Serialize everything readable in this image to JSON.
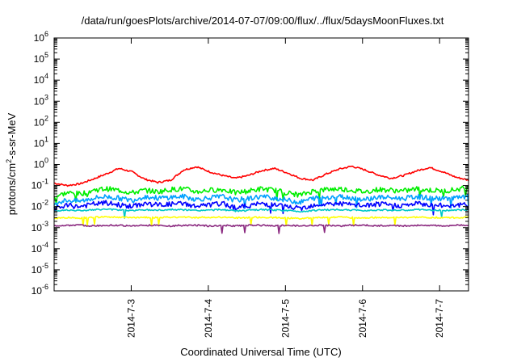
{
  "chart_data": {
    "type": "line",
    "title": "/data/run/goesPlots/archive/2014-07-07/09:00/flux/../flux/5daysMoonFluxes.txt",
    "xlabel": "Coordinated Universal Time (UTC)",
    "ylabel": "protons/cm²-s-sr-MeV",
    "yscale": "log",
    "ylim_exp": [
      -6,
      6
    ],
    "xlim": [
      "2014-07-02 00:00",
      "2014-07-07 09:00"
    ],
    "x_ticks": [
      "2014-7-3",
      "2014-7-4",
      "2014-7-5",
      "2014-7-6",
      "2014-7-7"
    ],
    "grid": false,
    "legend": "none",
    "series": [
      {
        "color": "#ff0000",
        "values": [
          0.13,
          0.1,
          0.12,
          0.2,
          0.35,
          0.65,
          0.45,
          0.2,
          0.14,
          0.18,
          0.55,
          0.78,
          0.45,
          0.3,
          0.22,
          0.3,
          0.5,
          0.65,
          0.4,
          0.22,
          0.18,
          0.35,
          0.6,
          0.82,
          0.55,
          0.32,
          0.22,
          0.3,
          0.5,
          0.72,
          0.45,
          0.25,
          0.18
        ]
      },
      {
        "color": "#00ee00",
        "values": [
          0.03,
          0.045,
          0.04,
          0.06,
          0.07,
          0.06,
          0.045,
          0.06,
          0.05,
          0.065,
          0.07,
          0.05,
          0.06,
          0.065,
          0.045,
          0.055,
          0.07,
          0.06,
          0.045,
          0.035,
          0.055,
          0.065,
          0.07,
          0.06,
          0.05,
          0.065,
          0.06,
          0.055,
          0.07,
          0.06,
          0.055,
          0.065,
          0.08
        ]
      },
      {
        "color": "#00a0ff",
        "values": [
          0.015,
          0.02,
          0.018,
          0.025,
          0.03,
          0.025,
          0.02,
          0.03,
          0.025,
          0.028,
          0.03,
          0.022,
          0.026,
          0.03,
          0.02,
          0.024,
          0.03,
          0.026,
          0.02,
          0.016,
          0.025,
          0.028,
          0.03,
          0.026,
          0.022,
          0.028,
          0.026,
          0.024,
          0.03,
          0.025,
          0.024,
          0.026,
          0.028
        ]
      },
      {
        "color": "#0000ff",
        "values": [
          0.008,
          0.011,
          0.01,
          0.013,
          0.015,
          0.012,
          0.01,
          0.014,
          0.012,
          0.013,
          0.014,
          0.01,
          0.012,
          0.014,
          0.009,
          0.011,
          0.014,
          0.012,
          0.01,
          0.008,
          0.012,
          0.013,
          0.014,
          0.012,
          0.011,
          0.013,
          0.012,
          0.011,
          0.014,
          0.012,
          0.011,
          0.012,
          0.012
        ]
      },
      {
        "color": "#00c8c8",
        "values": [
          0.006,
          0.007,
          0.0065,
          0.007,
          0.0075,
          0.007,
          0.0065,
          0.007,
          0.0068,
          0.0072,
          0.007,
          0.0065,
          0.0068,
          0.0072,
          0.0062,
          0.0066,
          0.0072,
          0.0068,
          0.0065,
          0.0058,
          0.0066,
          0.007,
          0.0072,
          0.0068,
          0.0065,
          0.007,
          0.0068,
          0.0066,
          0.0072,
          0.0068,
          0.0066,
          0.0068,
          0.007
        ]
      },
      {
        "color": "#ffff00",
        "values": [
          0.0028,
          0.003,
          0.0029,
          0.0031,
          0.0032,
          0.0031,
          0.003,
          0.0031,
          0.003,
          0.0031,
          0.0032,
          0.003,
          0.0031,
          0.0032,
          0.0029,
          0.003,
          0.0031,
          0.003,
          0.0029,
          0.0027,
          0.003,
          0.0031,
          0.0032,
          0.003,
          0.0029,
          0.0031,
          0.003,
          0.003,
          0.0031,
          0.003,
          0.003,
          0.003,
          0.0031
        ]
      },
      {
        "color": "#8b2a80",
        "values": [
          0.0012,
          0.0013,
          0.0013,
          0.0012,
          0.0013,
          0.0013,
          0.0012,
          0.0013,
          0.0013,
          0.0012,
          0.0013,
          0.0013,
          0.0012,
          0.0013,
          0.0012,
          0.0013,
          0.0013,
          0.0012,
          0.0013,
          0.0012,
          0.0013,
          0.0013,
          0.0012,
          0.0013,
          0.0013,
          0.0012,
          0.0013,
          0.0012,
          0.0013,
          0.0013,
          0.0012,
          0.0013,
          0.0013
        ]
      }
    ]
  }
}
